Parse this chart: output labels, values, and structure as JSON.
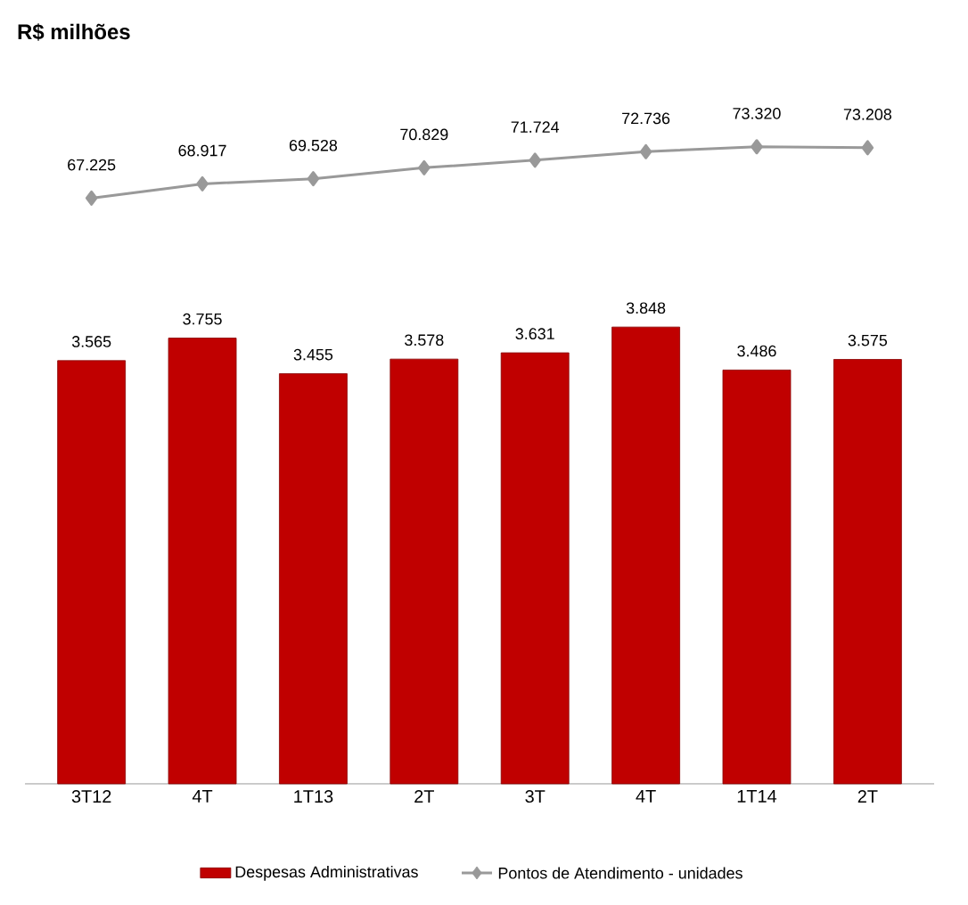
{
  "chart_data": [
    {
      "type": "line",
      "title": "R$ milhões",
      "marker": "diamond",
      "categories": [
        null,
        null,
        null,
        null,
        null,
        null,
        null,
        null
      ],
      "series": [
        {
          "name": "Pontos de Atendimento - unidades",
          "color": "#999999",
          "values": [
            67225,
            68917,
            69528,
            70829,
            71724,
            72736,
            73320,
            73208
          ],
          "value_labels": [
            "67.225",
            "68.917",
            "69.528",
            "70.829",
            "71.724",
            "72.736",
            "73.320",
            "73.208"
          ]
        }
      ],
      "tick_labels": false,
      "legend": "bottom"
    },
    {
      "type": "bar",
      "categories": [
        "3T12",
        "4T",
        "1T13",
        "2T",
        "3T",
        "4T",
        "1T14",
        "2T"
      ],
      "series": [
        {
          "name": "Despesas Administrativas",
          "color": "#c00000",
          "values": [
            3565,
            3755,
            3455,
            3578,
            3631,
            3848,
            3486,
            3575
          ],
          "value_labels": [
            "3.565",
            "3.755",
            "3.455",
            "3.578",
            "3.631",
            "3.848",
            "3.486",
            "3.575"
          ]
        }
      ],
      "tick_labels": "x",
      "legend": "bottom"
    }
  ]
}
